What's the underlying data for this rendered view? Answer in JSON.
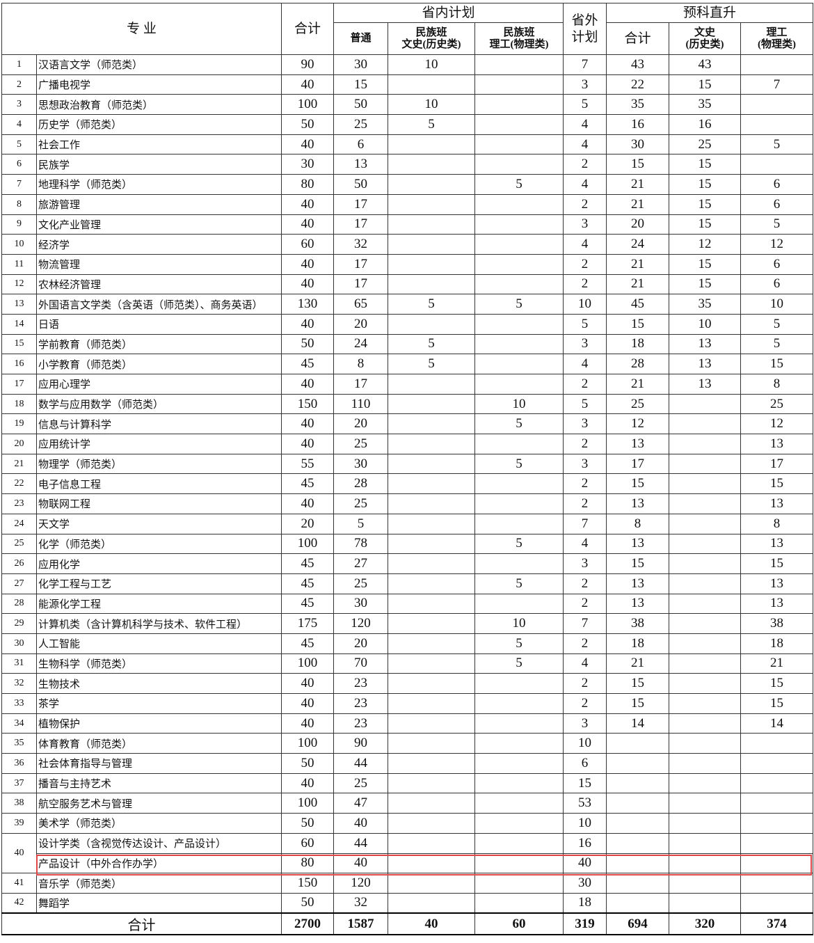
{
  "header": {
    "major": "专  业",
    "total": "合计",
    "in_province": "省内计划",
    "regular": "普通",
    "ethnic_arts_1": "民族班",
    "ethnic_arts_2": "文史(历史类)",
    "ethnic_sci_1": "民族班",
    "ethnic_sci_2": "理工(物理类)",
    "out_province": "省外计划",
    "prep": "预科直升",
    "prep_total": "合计",
    "prep_arts_1": "文史",
    "prep_arts_2": "(历史类)",
    "prep_sci_1": "理工",
    "prep_sci_2": "(物理类)"
  },
  "rows": [
    {
      "no": "1",
      "name": "汉语言文学（师范类）",
      "v": [
        "90",
        "30",
        "10",
        "",
        "7",
        "43",
        "43",
        ""
      ]
    },
    {
      "no": "2",
      "name": "广播电视学",
      "v": [
        "40",
        "15",
        "",
        "",
        "3",
        "22",
        "15",
        "7"
      ]
    },
    {
      "no": "3",
      "name": "思想政治教育（师范类）",
      "v": [
        "100",
        "50",
        "10",
        "",
        "5",
        "35",
        "35",
        ""
      ]
    },
    {
      "no": "4",
      "name": "历史学（师范类）",
      "v": [
        "50",
        "25",
        "5",
        "",
        "4",
        "16",
        "16",
        ""
      ]
    },
    {
      "no": "5",
      "name": "社会工作",
      "v": [
        "40",
        "6",
        "",
        "",
        "4",
        "30",
        "25",
        "5"
      ]
    },
    {
      "no": "6",
      "name": "民族学",
      "v": [
        "30",
        "13",
        "",
        "",
        "2",
        "15",
        "15",
        ""
      ]
    },
    {
      "no": "7",
      "name": "地理科学（师范类）",
      "v": [
        "80",
        "50",
        "",
        "5",
        "4",
        "21",
        "15",
        "6"
      ]
    },
    {
      "no": "8",
      "name": "旅游管理",
      "v": [
        "40",
        "17",
        "",
        "",
        "2",
        "21",
        "15",
        "6"
      ]
    },
    {
      "no": "9",
      "name": "文化产业管理",
      "v": [
        "40",
        "17",
        "",
        "",
        "3",
        "20",
        "15",
        "5"
      ]
    },
    {
      "no": "10",
      "name": "经济学",
      "v": [
        "60",
        "32",
        "",
        "",
        "4",
        "24",
        "12",
        "12"
      ]
    },
    {
      "no": "11",
      "name": "物流管理",
      "v": [
        "40",
        "17",
        "",
        "",
        "2",
        "21",
        "15",
        "6"
      ]
    },
    {
      "no": "12",
      "name": "农林经济管理",
      "v": [
        "40",
        "17",
        "",
        "",
        "2",
        "21",
        "15",
        "6"
      ]
    },
    {
      "no": "13",
      "name": "外国语言文学类（含英语（师范类）、商务英语）",
      "v": [
        "130",
        "65",
        "5",
        "5",
        "10",
        "45",
        "35",
        "10"
      ]
    },
    {
      "no": "14",
      "name": "日语",
      "v": [
        "40",
        "20",
        "",
        "",
        "5",
        "15",
        "10",
        "5"
      ]
    },
    {
      "no": "15",
      "name": "学前教育（师范类）",
      "v": [
        "50",
        "24",
        "5",
        "",
        "3",
        "18",
        "13",
        "5"
      ]
    },
    {
      "no": "16",
      "name": "小学教育（师范类）",
      "v": [
        "45",
        "8",
        "5",
        "",
        "4",
        "28",
        "13",
        "15"
      ]
    },
    {
      "no": "17",
      "name": "应用心理学",
      "v": [
        "40",
        "17",
        "",
        "",
        "2",
        "21",
        "13",
        "8"
      ]
    },
    {
      "no": "18",
      "name": "数学与应用数学（师范类）",
      "v": [
        "150",
        "110",
        "",
        "10",
        "5",
        "25",
        "",
        "25"
      ]
    },
    {
      "no": "19",
      "name": "信息与计算科学",
      "v": [
        "40",
        "20",
        "",
        "5",
        "3",
        "12",
        "",
        "12"
      ]
    },
    {
      "no": "20",
      "name": "应用统计学",
      "v": [
        "40",
        "25",
        "",
        "",
        "2",
        "13",
        "",
        "13"
      ]
    },
    {
      "no": "21",
      "name": "物理学（师范类）",
      "v": [
        "55",
        "30",
        "",
        "5",
        "3",
        "17",
        "",
        "17"
      ]
    },
    {
      "no": "22",
      "name": "电子信息工程",
      "v": [
        "45",
        "28",
        "",
        "",
        "2",
        "15",
        "",
        "15"
      ]
    },
    {
      "no": "23",
      "name": "物联网工程",
      "v": [
        "40",
        "25",
        "",
        "",
        "2",
        "13",
        "",
        "13"
      ]
    },
    {
      "no": "24",
      "name": "天文学",
      "v": [
        "20",
        "5",
        "",
        "",
        "7",
        "8",
        "",
        "8"
      ]
    },
    {
      "no": "25",
      "name": "化学（师范类）",
      "v": [
        "100",
        "78",
        "",
        "5",
        "4",
        "13",
        "",
        "13"
      ]
    },
    {
      "no": "26",
      "name": "应用化学",
      "v": [
        "45",
        "27",
        "",
        "",
        "3",
        "15",
        "",
        "15"
      ]
    },
    {
      "no": "27",
      "name": "化学工程与工艺",
      "v": [
        "45",
        "25",
        "",
        "5",
        "2",
        "13",
        "",
        "13"
      ]
    },
    {
      "no": "28",
      "name": "能源化学工程",
      "v": [
        "45",
        "30",
        "",
        "",
        "2",
        "13",
        "",
        "13"
      ]
    },
    {
      "no": "29",
      "name": "计算机类（含计算机科学与技术、软件工程）",
      "v": [
        "175",
        "120",
        "",
        "10",
        "7",
        "38",
        "",
        "38"
      ]
    },
    {
      "no": "30",
      "name": "人工智能",
      "v": [
        "45",
        "20",
        "",
        "5",
        "2",
        "18",
        "",
        "18"
      ]
    },
    {
      "no": "31",
      "name": "生物科学（师范类）",
      "v": [
        "100",
        "70",
        "",
        "5",
        "4",
        "21",
        "",
        "21"
      ]
    },
    {
      "no": "32",
      "name": "生物技术",
      "v": [
        "40",
        "23",
        "",
        "",
        "2",
        "15",
        "",
        "15"
      ]
    },
    {
      "no": "33",
      "name": "茶学",
      "v": [
        "40",
        "23",
        "",
        "",
        "2",
        "15",
        "",
        "15"
      ]
    },
    {
      "no": "34",
      "name": "植物保护",
      "v": [
        "40",
        "23",
        "",
        "",
        "3",
        "14",
        "",
        "14"
      ]
    },
    {
      "no": "35",
      "name": "体育教育（师范类）",
      "v": [
        "100",
        "90",
        "",
        "",
        "10",
        "",
        "",
        ""
      ]
    },
    {
      "no": "36",
      "name": "社会体育指导与管理",
      "v": [
        "50",
        "44",
        "",
        "",
        "6",
        "",
        "",
        ""
      ]
    },
    {
      "no": "37",
      "name": "播音与主持艺术",
      "v": [
        "40",
        "25",
        "",
        "",
        "15",
        "",
        "",
        ""
      ]
    },
    {
      "no": "38",
      "name": "航空服务艺术与管理",
      "v": [
        "100",
        "47",
        "",
        "",
        "53",
        "",
        "",
        ""
      ]
    },
    {
      "no": "39",
      "name": "美术学（师范类）",
      "v": [
        "50",
        "40",
        "",
        "",
        "10",
        "",
        "",
        ""
      ]
    },
    {
      "no": "40",
      "name": "设计学类（含视觉传达设计、产品设计）",
      "v": [
        "60",
        "44",
        "",
        "",
        "16",
        "",
        "",
        ""
      ]
    },
    {
      "no": "",
      "name": "产品设计（中外合作办学）",
      "v": [
        "80",
        "40",
        "",
        "",
        "40",
        "",
        "",
        ""
      ],
      "highlighted": true
    },
    {
      "no": "41",
      "name": "音乐学（师范类）",
      "v": [
        "150",
        "120",
        "",
        "",
        "30",
        "",
        "",
        ""
      ]
    },
    {
      "no": "42",
      "name": "舞蹈学",
      "v": [
        "50",
        "32",
        "",
        "",
        "18",
        "",
        "",
        ""
      ]
    }
  ],
  "total": {
    "label": "合计",
    "v": [
      "2700",
      "1587",
      "40",
      "60",
      "319",
      "694",
      "320",
      "374"
    ]
  },
  "highlight_color": "#e04848"
}
